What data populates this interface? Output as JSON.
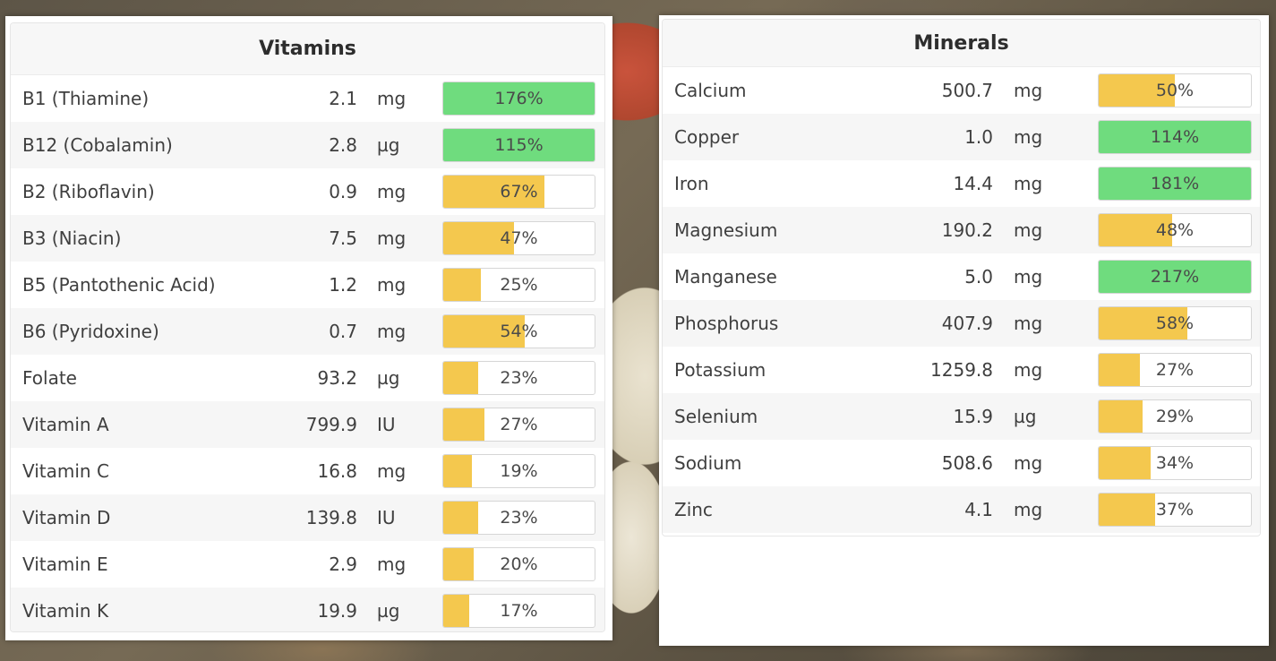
{
  "colors": {
    "over": "#6fdc7e",
    "under": "#f4c84e"
  },
  "vitamins": {
    "title": "Vitamins",
    "rows": [
      {
        "name": "B1 (Thiamine)",
        "amount": "2.1",
        "unit": "mg",
        "percent_label": "176%",
        "percent": 176
      },
      {
        "name": "B12 (Cobalamin)",
        "amount": "2.8",
        "unit": "µg",
        "percent_label": "115%",
        "percent": 115
      },
      {
        "name": "B2 (Riboflavin)",
        "amount": "0.9",
        "unit": "mg",
        "percent_label": "67%",
        "percent": 67
      },
      {
        "name": "B3 (Niacin)",
        "amount": "7.5",
        "unit": "mg",
        "percent_label": "47%",
        "percent": 47
      },
      {
        "name": "B5 (Pantothenic Acid)",
        "amount": "1.2",
        "unit": "mg",
        "percent_label": "25%",
        "percent": 25
      },
      {
        "name": "B6 (Pyridoxine)",
        "amount": "0.7",
        "unit": "mg",
        "percent_label": "54%",
        "percent": 54
      },
      {
        "name": "Folate",
        "amount": "93.2",
        "unit": "µg",
        "percent_label": "23%",
        "percent": 23
      },
      {
        "name": "Vitamin A",
        "amount": "799.9",
        "unit": "IU",
        "percent_label": "27%",
        "percent": 27
      },
      {
        "name": "Vitamin C",
        "amount": "16.8",
        "unit": "mg",
        "percent_label": "19%",
        "percent": 19
      },
      {
        "name": "Vitamin D",
        "amount": "139.8",
        "unit": "IU",
        "percent_label": "23%",
        "percent": 23
      },
      {
        "name": "Vitamin E",
        "amount": "2.9",
        "unit": "mg",
        "percent_label": "20%",
        "percent": 20
      },
      {
        "name": "Vitamin K",
        "amount": "19.9",
        "unit": "µg",
        "percent_label": "17%",
        "percent": 17
      }
    ]
  },
  "minerals": {
    "title": "Minerals",
    "rows": [
      {
        "name": "Calcium",
        "amount": "500.7",
        "unit": "mg",
        "percent_label": "50%",
        "percent": 50
      },
      {
        "name": "Copper",
        "amount": "1.0",
        "unit": "mg",
        "percent_label": "114%",
        "percent": 114
      },
      {
        "name": "Iron",
        "amount": "14.4",
        "unit": "mg",
        "percent_label": "181%",
        "percent": 181
      },
      {
        "name": "Magnesium",
        "amount": "190.2",
        "unit": "mg",
        "percent_label": "48%",
        "percent": 48
      },
      {
        "name": "Manganese",
        "amount": "5.0",
        "unit": "mg",
        "percent_label": "217%",
        "percent": 217
      },
      {
        "name": "Phosphorus",
        "amount": "407.9",
        "unit": "mg",
        "percent_label": "58%",
        "percent": 58
      },
      {
        "name": "Potassium",
        "amount": "1259.8",
        "unit": "mg",
        "percent_label": "27%",
        "percent": 27
      },
      {
        "name": "Selenium",
        "amount": "15.9",
        "unit": "µg",
        "percent_label": "29%",
        "percent": 29
      },
      {
        "name": "Sodium",
        "amount": "508.6",
        "unit": "mg",
        "percent_label": "34%",
        "percent": 34
      },
      {
        "name": "Zinc",
        "amount": "4.1",
        "unit": "mg",
        "percent_label": "37%",
        "percent": 37
      }
    ]
  }
}
